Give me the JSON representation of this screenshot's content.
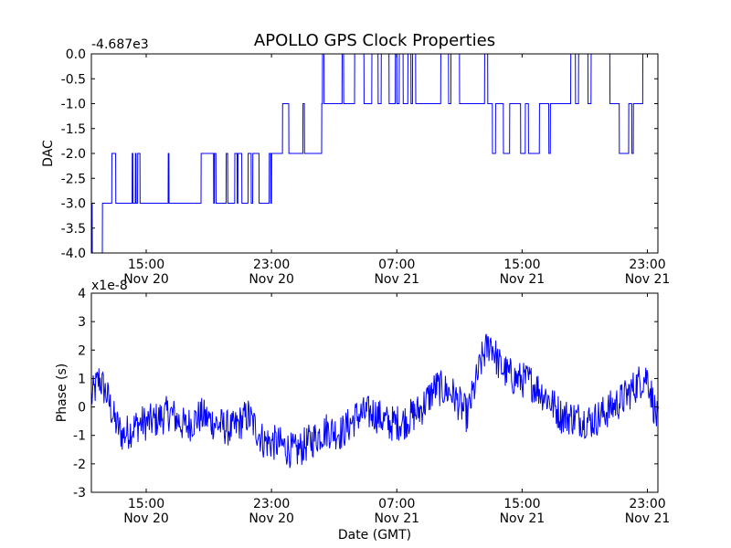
{
  "title": "APOLLO GPS Clock Properties",
  "colors": {
    "line": "#0000ff",
    "axes": "#000000",
    "background": "#ffffff"
  },
  "chart_data": [
    {
      "type": "line",
      "ylabel": "DAC",
      "offset_label": "-4.687e3",
      "x_range": [
        "Nov 20 11:30",
        "Nov 21 23:40"
      ],
      "ylim": [
        -4.0,
        0.0
      ],
      "y_ticks": [
        "0.0",
        "-0.5",
        "-1.0",
        "-1.5",
        "-2.0",
        "-2.5",
        "-3.0",
        "-3.5",
        "-4.0"
      ],
      "x_ticks": [
        {
          "time": "15:00",
          "date": "Nov 20"
        },
        {
          "time": "23:00",
          "date": "Nov 20"
        },
        {
          "time": "07:00",
          "date": "Nov 21"
        },
        {
          "time": "15:00",
          "date": "Nov 21"
        },
        {
          "time": "23:00",
          "date": "Nov 21"
        }
      ],
      "series": [
        {
          "x_hours_since_nov20_1130": [
            0.0,
            0.05,
            0.06,
            0.4,
            0.41,
            0.7,
            0.71,
            1.3,
            1.31,
            1.55,
            1.56,
            1.7,
            1.71,
            2.6,
            2.61,
            2.65,
            2.66,
            2.8,
            2.81,
            2.85,
            2.86,
            2.95,
            2.96,
            3.1,
            3.11,
            4.9,
            4.91,
            4.95,
            4.96,
            7.0,
            7.01,
            7.8,
            7.81,
            7.85,
            7.86,
            7.95,
            7.96,
            8.6,
            8.61,
            8.7,
            8.71,
            9.15,
            9.16,
            9.3,
            9.31,
            9.35,
            9.36,
            9.6,
            9.61,
            10.0,
            10.01,
            10.2,
            10.21,
            10.3,
            10.31,
            10.7,
            10.71,
            11.35,
            11.36,
            11.45,
            11.46,
            11.5,
            11.51,
            12.2,
            12.21,
            12.6,
            12.61,
            13.5,
            13.51,
            13.6,
            13.61,
            14.7,
            14.71,
            14.75,
            14.76,
            14.85,
            14.86,
            16.0,
            16.01,
            16.1,
            16.11,
            16.8,
            16.81,
            17.4,
            17.41,
            17.9,
            17.91,
            18.3,
            18.31,
            18.5,
            18.51,
            19.0,
            19.01,
            19.4,
            19.41,
            19.5,
            19.51,
            19.65,
            19.66,
            19.9,
            19.91,
            20.2,
            20.21,
            20.4,
            20.41,
            20.5,
            20.51,
            20.7,
            20.71,
            22.3,
            22.31,
            22.8,
            22.81,
            22.95,
            22.96,
            23.5,
            23.51,
            25.1,
            25.11,
            25.3,
            25.31,
            25.6,
            25.61,
            25.8,
            25.81,
            26.3,
            26.31,
            26.7,
            26.71,
            27.4,
            27.41,
            27.7,
            27.71,
            27.9,
            27.91,
            28.6,
            28.61,
            28.7,
            28.71,
            29.2,
            29.21,
            29.3,
            29.31,
            30.6,
            30.61,
            30.9,
            30.91,
            31.1,
            31.11,
            31.7,
            31.71,
            31.9,
            31.91,
            33.1,
            33.11,
            33.3,
            33.31,
            33.7,
            33.71,
            34.3,
            34.31,
            34.5,
            34.51,
            34.6,
            34.61,
            35.1,
            35.11,
            35.2,
            35.21,
            35.4,
            35.41,
            36.1,
            36.11
          ],
          "y": [
            -3.0,
            -3.0,
            -4.0,
            -4.0,
            -4.0,
            -4.0,
            -3.0,
            -3.0,
            -2.0,
            -2.0,
            -3.0,
            -3.0,
            -3.0,
            -3.0,
            -2.0,
            -2.0,
            -3.0,
            -3.0,
            -2.0,
            -2.0,
            -3.0,
            -3.0,
            -2.0,
            -2.0,
            -3.0,
            -3.0,
            -2.0,
            -2.0,
            -3.0,
            -3.0,
            -2.0,
            -2.0,
            -3.0,
            -3.0,
            -2.0,
            -2.0,
            -3.0,
            -3.0,
            -2.0,
            -2.0,
            -3.0,
            -3.0,
            -2.0,
            -2.0,
            -3.0,
            -3.0,
            -2.0,
            -2.0,
            -3.0,
            -3.0,
            -2.0,
            -2.0,
            -3.0,
            -3.0,
            -2.0,
            -2.0,
            -3.0,
            -3.0,
            -2.0,
            -2.0,
            -3.0,
            -3.0,
            -2.0,
            -2.0,
            -1.0,
            -1.0,
            -2.0,
            -2.0,
            -1.0,
            -1.0,
            -2.0,
            -2.0,
            -1.0,
            -1.0,
            -0.0,
            -0.0,
            -1.0,
            -1.0,
            0.0,
            0.0,
            -1.0,
            -1.0,
            0.0,
            0.0,
            -1.0,
            -1.0,
            0.0,
            0.0,
            -1.0,
            -1.0,
            0.0,
            0.0,
            -1.0,
            -1.0,
            0.0,
            0.0,
            -1.0,
            -1.0,
            0.0,
            0.0,
            -1.0,
            -1.0,
            0.0,
            0.0,
            -1.0,
            -1.0,
            0.0,
            0.0,
            -1.0,
            -1.0,
            0.0,
            0.0,
            -1.0,
            -1.0,
            0.0,
            0.0,
            -1.0,
            -1.0,
            0.0,
            0.0,
            -1.0,
            -1.0,
            -2.0,
            -2.0,
            -1.0,
            -1.0,
            -2.0,
            -2.0,
            -1.0,
            -1.0,
            -2.0,
            -2.0,
            -1.0,
            -1.0,
            -2.0,
            -2.0,
            -1.0,
            -1.0,
            -1.0,
            -1.0,
            -2.0,
            -2.0,
            -1.0,
            -1.0,
            0.0,
            0.0,
            -1.0,
            -1.0,
            0.0,
            0.0,
            -1.0,
            -1.0,
            0.0,
            0.0,
            -1.0,
            -1.0,
            -1.0,
            -1.0,
            -2.0,
            -2.0,
            -1.0,
            -1.0,
            -2.0,
            -2.0,
            -1.0,
            -1.0,
            -1.0,
            -1.0,
            0.0,
            0.0,
            0.0
          ]
        }
      ]
    },
    {
      "type": "line",
      "xlabel": "Date (GMT)",
      "ylabel": "Phase (s)",
      "offset_label": "x1e-8",
      "x_range": [
        "Nov 20 11:30",
        "Nov 21 23:40"
      ],
      "ylim": [
        -3,
        4
      ],
      "y_ticks": [
        "4",
        "3",
        "2",
        "1",
        "0",
        "-1",
        "-2",
        "-3"
      ],
      "x_ticks": [
        {
          "time": "15:00",
          "date": "Nov 20"
        },
        {
          "time": "23:00",
          "date": "Nov 20"
        },
        {
          "time": "07:00",
          "date": "Nov 21"
        },
        {
          "time": "15:00",
          "date": "Nov 21"
        },
        {
          "time": "23:00",
          "date": "Nov 21"
        }
      ],
      "series": [
        {
          "x_hours_since_nov20_1130": [
            0,
            0.5,
            1,
            1.5,
            2,
            3,
            4,
            5,
            6,
            7,
            8,
            9,
            10,
            11,
            12,
            13,
            14,
            15,
            16,
            17,
            18,
            19,
            20,
            21,
            22,
            23,
            24,
            25,
            25.5,
            26,
            26.5,
            27,
            28,
            29,
            30,
            31,
            32,
            33,
            34,
            35,
            35.5,
            36,
            36.2
          ],
          "y": [
            0.3,
            1.0,
            0.4,
            -0.5,
            -1.0,
            -0.6,
            -0.5,
            -0.2,
            -0.7,
            -0.3,
            -0.6,
            -0.8,
            -0.3,
            -1.2,
            -1.3,
            -1.6,
            -1.2,
            -0.8,
            -0.9,
            -0.3,
            -0.2,
            -0.6,
            -0.5,
            -0.1,
            0.7,
            0.5,
            -0.3,
            1.8,
            2.3,
            1.5,
            1.2,
            1.0,
            0.9,
            0.4,
            -0.3,
            -0.4,
            -0.5,
            -0.1,
            0.3,
            0.9,
            1.1,
            -0.2,
            -0.6
          ]
        }
      ]
    }
  ]
}
